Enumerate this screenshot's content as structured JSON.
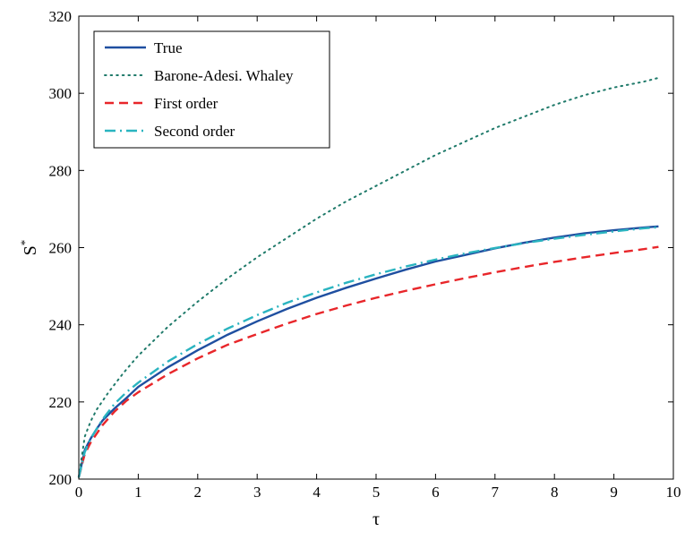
{
  "chart_data": {
    "type": "line",
    "xlabel": "τ",
    "ylabel": "S",
    "ylabel_superscript": "*",
    "xlim": [
      0,
      10
    ],
    "ylim": [
      200,
      320
    ],
    "xticks": [
      "0",
      "1",
      "2",
      "3",
      "4",
      "5",
      "6",
      "7",
      "8",
      "9",
      "10"
    ],
    "yticks": [
      "200",
      "220",
      "240",
      "260",
      "280",
      "300",
      "320"
    ],
    "grid": false,
    "legend_position": "top-left",
    "series": [
      {
        "name": "True",
        "style": "solid",
        "color": "#1f4fa0",
        "x": [
          0,
          0.1,
          0.2,
          0.3,
          0.4,
          0.6,
          0.8,
          1,
          1.5,
          2,
          2.5,
          3,
          3.5,
          4,
          4.5,
          5,
          5.5,
          6,
          6.5,
          7,
          7.5,
          8,
          8.5,
          9,
          9.5,
          9.75
        ],
        "y": [
          200.5,
          207.5,
          210.5,
          213,
          215.2,
          218.3,
          221,
          223.9,
          229,
          233.4,
          237.4,
          240.9,
          244.1,
          247,
          249.6,
          252,
          254.3,
          256.4,
          258.1,
          259.8,
          261.3,
          262.6,
          263.7,
          264.5,
          265.2,
          265.5
        ]
      },
      {
        "name": "Barone-Adesi. Whaley",
        "style": "dotted",
        "color": "#1f7a6a",
        "x": [
          0,
          0.1,
          0.2,
          0.3,
          0.5,
          0.75,
          1,
          1.5,
          2,
          2.5,
          3,
          3.5,
          4,
          4.5,
          5,
          5.5,
          6,
          6.5,
          7,
          7.5,
          8,
          8.5,
          9,
          9.5,
          9.75
        ],
        "y": [
          200.5,
          211,
          215,
          218,
          222.5,
          227.5,
          232,
          239.5,
          246,
          252,
          257.5,
          262.5,
          267.5,
          272,
          276,
          280,
          284,
          287.5,
          291,
          294,
          297,
          299.5,
          301.5,
          303,
          304
        ]
      },
      {
        "name": "First order",
        "style": "dashed",
        "color": "#e8262a",
        "x": [
          0,
          0.1,
          0.2,
          0.4,
          0.6,
          0.8,
          1,
          1.5,
          2,
          2.5,
          3,
          3.5,
          4,
          4.5,
          5,
          5.5,
          6,
          6.5,
          7,
          7.5,
          8,
          8.5,
          9,
          9.5,
          9.75
        ],
        "y": [
          200.5,
          206.5,
          209.5,
          214,
          217.5,
          220.3,
          222.5,
          227.2,
          231.3,
          234.8,
          237.6,
          240.3,
          242.8,
          245,
          247,
          248.8,
          250.5,
          252.1,
          253.6,
          255,
          256.3,
          257.5,
          258.6,
          259.6,
          260.2
        ]
      },
      {
        "name": "Second order",
        "style": "dashdot",
        "color": "#2ab4c0",
        "x": [
          0,
          0.1,
          0.2,
          0.4,
          0.6,
          0.8,
          1,
          1.5,
          2,
          2.5,
          3,
          3.5,
          4,
          4.5,
          5,
          5.5,
          6,
          6.5,
          7,
          7.5,
          8,
          8.5,
          9,
          9.5,
          9.75
        ],
        "y": [
          200.5,
          207,
          210.5,
          215.5,
          219.5,
          222.5,
          225,
          230.5,
          235,
          239,
          242.5,
          245.7,
          248.4,
          250.9,
          253.1,
          255.1,
          256.9,
          258.5,
          259.9,
          261.2,
          262.3,
          263.3,
          264.2,
          265,
          265.3
        ]
      }
    ]
  }
}
